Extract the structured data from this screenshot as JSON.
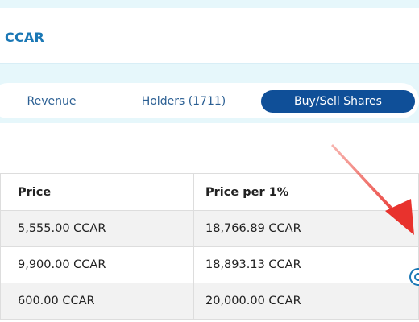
{
  "header": {
    "title": "CCAR"
  },
  "tabs": [
    {
      "label": "Revenue"
    },
    {
      "label": "Holders (1711)"
    },
    {
      "label": "Buy/Sell Shares"
    }
  ],
  "table": {
    "columns": [
      "Price",
      "Price per 1%"
    ],
    "rows": [
      {
        "price": "5,555.00 CCAR",
        "price_per_pct": "18,766.89 CCAR"
      },
      {
        "price": "9,900.00 CCAR",
        "price_per_pct": "18,893.13 CCAR"
      },
      {
        "price": "600.00 CCAR",
        "price_per_pct": "20,000.00 CCAR"
      }
    ]
  },
  "colors": {
    "accent": "#1b78b5",
    "active_tab": "#0f4f98",
    "band": "#e6f7fb",
    "annotation_arrow": "#e8322d"
  },
  "icons": {
    "annotation": "red-arrow-icon",
    "help": "help-circle-icon"
  }
}
